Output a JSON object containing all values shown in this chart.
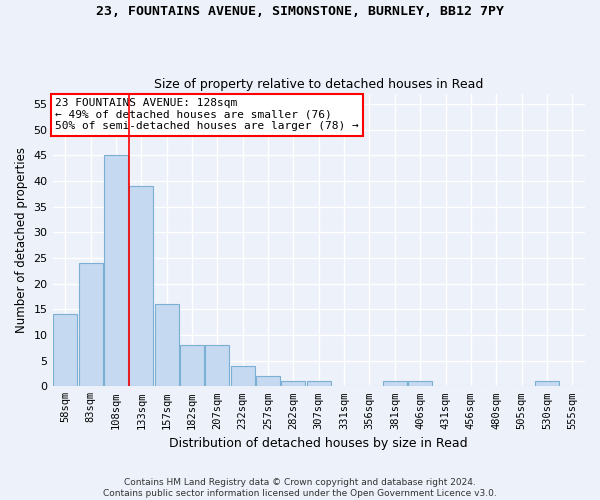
{
  "title": "23, FOUNTAINS AVENUE, SIMONSTONE, BURNLEY, BB12 7PY",
  "subtitle": "Size of property relative to detached houses in Read",
  "xlabel": "Distribution of detached houses by size in Read",
  "ylabel": "Number of detached properties",
  "categories": [
    "58sqm",
    "83sqm",
    "108sqm",
    "133sqm",
    "157sqm",
    "182sqm",
    "207sqm",
    "232sqm",
    "257sqm",
    "282sqm",
    "307sqm",
    "331sqm",
    "356sqm",
    "381sqm",
    "406sqm",
    "431sqm",
    "456sqm",
    "480sqm",
    "505sqm",
    "530sqm",
    "555sqm"
  ],
  "values": [
    14,
    24,
    45,
    39,
    16,
    8,
    8,
    4,
    2,
    1,
    1,
    0,
    0,
    1,
    1,
    0,
    0,
    0,
    0,
    1,
    0
  ],
  "bar_color": "#c5d9f0",
  "bar_edge_color": "#7bafd4",
  "vline_x_index": 3,
  "vline_color": "red",
  "annotation_text": "23 FOUNTAINS AVENUE: 128sqm\n← 49% of detached houses are smaller (76)\n50% of semi-detached houses are larger (78) →",
  "annotation_box_color": "white",
  "annotation_box_edge": "red",
  "ylim": [
    0,
    57
  ],
  "yticks": [
    0,
    5,
    10,
    15,
    20,
    25,
    30,
    35,
    40,
    45,
    50,
    55
  ],
  "footer": "Contains HM Land Registry data © Crown copyright and database right 2024.\nContains public sector information licensed under the Open Government Licence v3.0.",
  "bg_color": "#edf1f9",
  "grid_color": "white"
}
